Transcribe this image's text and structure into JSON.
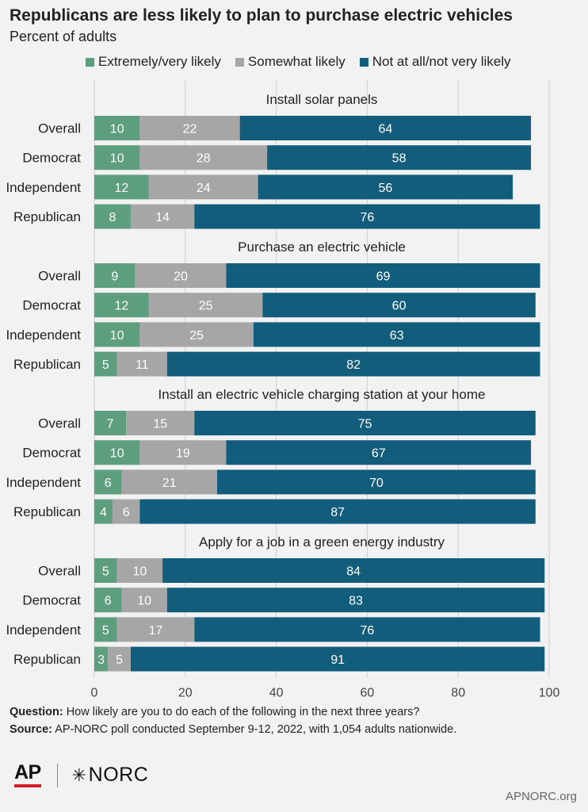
{
  "header": {
    "title": "Republicans are less likely to plan to purchase electric vehicles",
    "subtitle": "Percent of adults"
  },
  "legend": [
    {
      "label": "Extremely/very likely",
      "color": "#5d9e7e"
    },
    {
      "label": "Somewhat likely",
      "color": "#a6a6a6"
    },
    {
      "label": "Not at all/not very likely",
      "color": "#135d7c"
    }
  ],
  "chart_data": {
    "type": "bar",
    "orientation": "horizontal",
    "stacked": true,
    "xlim": [
      0,
      100
    ],
    "xticks": [
      0,
      20,
      40,
      60,
      80,
      100
    ],
    "categories": [
      "Overall",
      "Democrat",
      "Independent",
      "Republican"
    ],
    "series_names": [
      "Extremely/very likely",
      "Somewhat likely",
      "Not at all/not very likely"
    ],
    "panels": [
      {
        "title": "Install solar panels",
        "values": [
          [
            10,
            22,
            64
          ],
          [
            10,
            28,
            58
          ],
          [
            12,
            24,
            56
          ],
          [
            8,
            14,
            76
          ]
        ]
      },
      {
        "title": "Purchase an electric vehicle",
        "values": [
          [
            9,
            20,
            69
          ],
          [
            12,
            25,
            60
          ],
          [
            10,
            25,
            63
          ],
          [
            5,
            11,
            82
          ]
        ]
      },
      {
        "title": "Install an electric vehicle charging station at your home",
        "values": [
          [
            7,
            15,
            75
          ],
          [
            10,
            19,
            67
          ],
          [
            6,
            21,
            70
          ],
          [
            4,
            6,
            87
          ]
        ]
      },
      {
        "title": "Apply for a job in a green energy industry",
        "values": [
          [
            5,
            10,
            84
          ],
          [
            6,
            10,
            83
          ],
          [
            5,
            17,
            76
          ],
          [
            3,
            5,
            91
          ]
        ]
      }
    ]
  },
  "footer": {
    "question_label": "Question:",
    "question_text": " How likely are you to do each of the following in the next three years?",
    "source_label": "Source:",
    "source_text": " AP-NORC poll conducted September 9-12, 2022, with 1,054 adults nationwide."
  },
  "branding": {
    "ap_logo": "AP",
    "norc_logo": "NORC",
    "site": "APNORC.org"
  }
}
